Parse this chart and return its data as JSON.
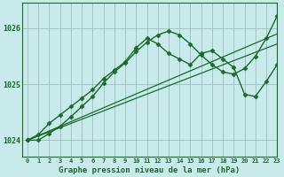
{
  "background_color": "#c8eaea",
  "grid_color": "#9bbfbf",
  "line_color": "#1a6b2a",
  "title": "Graphe pression niveau de la mer (hPa)",
  "xlim": [
    -0.5,
    23
  ],
  "ylim": [
    1023.7,
    1026.45
  ],
  "yticks": [
    1024,
    1025,
    1026
  ],
  "series": [
    {
      "x": [
        0,
        1,
        2,
        3,
        4,
        5,
        6,
        7,
        8,
        9,
        10,
        11,
        12,
        13,
        14,
        15,
        16,
        17,
        18,
        19,
        20,
        21,
        22,
        23
      ],
      "y": [
        1024.0,
        1024.1,
        1024.3,
        1024.45,
        1024.6,
        1024.75,
        1024.9,
        1025.1,
        1025.25,
        1025.4,
        1025.65,
        1025.82,
        1025.72,
        1025.55,
        1025.45,
        1025.35,
        1025.55,
        1025.6,
        1025.45,
        1025.3,
        1024.82,
        1024.78,
        1025.05,
        1025.35
      ],
      "marker": true,
      "linewidth": 1.0
    },
    {
      "x": [
        0,
        23
      ],
      "y": [
        1024.0,
        1025.72
      ],
      "marker": false,
      "linewidth": 0.9
    },
    {
      "x": [
        0,
        23
      ],
      "y": [
        1024.0,
        1025.9
      ],
      "marker": false,
      "linewidth": 0.9
    },
    {
      "x": [
        0,
        1,
        2,
        3,
        4,
        5,
        6,
        7,
        8,
        9,
        10,
        11,
        12,
        13,
        14,
        15,
        16,
        17,
        18,
        19,
        20,
        21,
        22,
        23
      ],
      "y": [
        1024.0,
        1024.0,
        1024.12,
        1024.25,
        1024.42,
        1024.6,
        1024.78,
        1025.02,
        1025.22,
        1025.38,
        1025.58,
        1025.75,
        1025.88,
        1025.95,
        1025.88,
        1025.72,
        1025.52,
        1025.35,
        1025.22,
        1025.18,
        1025.28,
        1025.5,
        1025.82,
        1026.22
      ],
      "marker": true,
      "linewidth": 1.0
    }
  ]
}
